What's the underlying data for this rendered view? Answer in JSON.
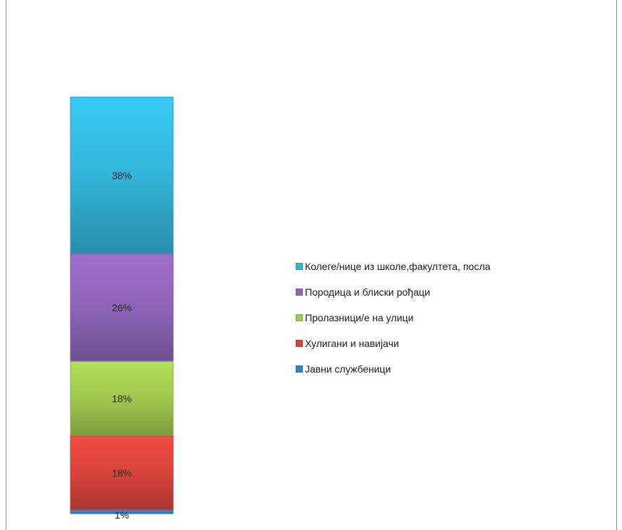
{
  "chart_data": {
    "type": "bar",
    "stacked": true,
    "categories": [
      ""
    ],
    "series": [
      {
        "name": "Јавни службеници",
        "values": [
          1
        ],
        "label": "1%",
        "color": "#3f7fc4"
      },
      {
        "name": "Хулигани и навијачи",
        "values": [
          18
        ],
        "label": "18%",
        "color": "#d8443c"
      },
      {
        "name": "Пролазници/е на улици",
        "values": [
          18
        ],
        "label": "18%",
        "color": "#a0c850"
      },
      {
        "name": "Породица и блиски рођаци",
        "values": [
          26
        ],
        "label": "26%",
        "color": "#8e64b8"
      },
      {
        "name": "Колеге/нице из школе,факултета, посла",
        "values": [
          38
        ],
        "label": "38%",
        "color": "#33b5da"
      }
    ],
    "ylim": [
      0,
      101
    ],
    "legend_position": "right",
    "grid": false
  },
  "legend": {
    "items": [
      {
        "label": "Колеге/нице из школе,факултета, посла",
        "color": "#33b5da"
      },
      {
        "label": "Породица и блиски рођаци",
        "color": "#8e64b8"
      },
      {
        "label": "Пролазници/е на улици",
        "color": "#a0c850"
      },
      {
        "label": "Хулигани и навијачи",
        "color": "#d8443c"
      },
      {
        "label": "Јавни службеници",
        "color": "#3f7fc4"
      }
    ]
  }
}
